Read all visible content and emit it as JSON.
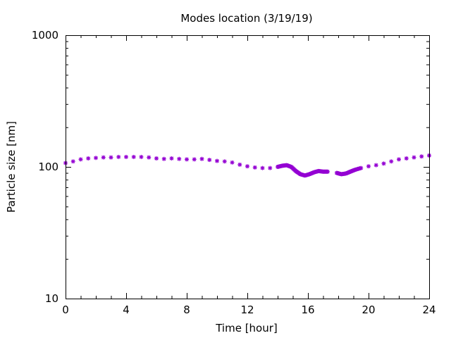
{
  "chart_data": {
    "type": "scatter",
    "title": "Modes location (3/19/19)",
    "xlabel": "Time [hour]",
    "ylabel": "Particle size [nm]",
    "xlim": [
      0,
      24
    ],
    "ylim": [
      10,
      1000
    ],
    "y_scale": "log",
    "grid": false,
    "legend": "none",
    "x_ticks": [
      0,
      4,
      8,
      12,
      16,
      20,
      24
    ],
    "x_tick_labels": [
      "0",
      "4",
      "8",
      "12",
      "16",
      "20",
      "24"
    ],
    "y_ticks": [
      10,
      100,
      1000
    ],
    "y_tick_labels": [
      "10",
      "100",
      "1000"
    ],
    "series": [
      {
        "color": "#9400d3",
        "marker": "star",
        "x": [
          0.0,
          0.5,
          1.0,
          1.5,
          2.0,
          2.5,
          3.0,
          3.5,
          4.0,
          4.5,
          5.0,
          5.5,
          6.0,
          6.5,
          7.0,
          7.5,
          8.0,
          8.5,
          9.0,
          9.5,
          10.0,
          10.5,
          11.0,
          11.5,
          12.0,
          12.5,
          13.0,
          13.5,
          14.0,
          14.3,
          14.6,
          14.9,
          15.2,
          15.5,
          15.8,
          16.1,
          16.4,
          16.7,
          17.0,
          17.3,
          17.9,
          18.2,
          18.5,
          18.8,
          19.1,
          19.5,
          20.0,
          20.5,
          21.0,
          21.5,
          22.0,
          22.5,
          23.0,
          23.5,
          24.0
        ],
        "y": [
          107,
          110,
          114,
          116,
          117,
          118,
          118,
          119,
          119,
          119,
          119,
          118,
          116,
          115,
          116,
          115,
          114,
          114,
          115,
          113,
          111,
          110,
          108,
          104,
          101,
          99,
          98,
          98,
          100,
          102,
          103,
          100,
          93,
          88,
          86,
          88,
          91,
          93,
          92,
          92,
          90,
          88,
          89,
          92,
          95,
          98,
          101,
          103,
          106,
          110,
          114,
          116,
          118,
          120,
          122
        ]
      }
    ]
  }
}
